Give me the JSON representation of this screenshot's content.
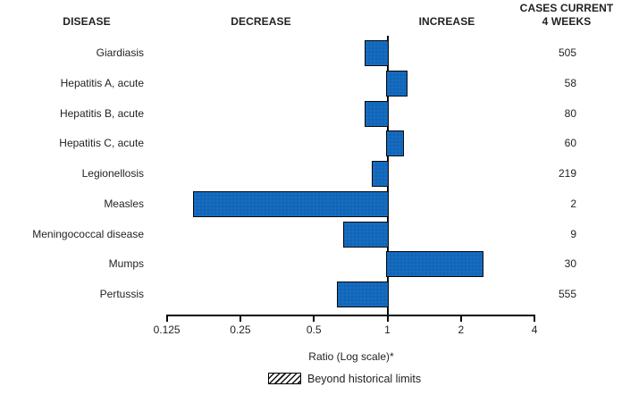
{
  "header": {
    "disease": "DISEASE",
    "decrease": "DECREASE",
    "increase": "INCREASE",
    "cases_line1": "CASES CURRENT",
    "cases_line2": "4 WEEKS"
  },
  "chart_data": {
    "type": "bar",
    "orientation": "horizontal",
    "scale": "log2",
    "xlabel": "Ratio (Log scale)*",
    "baseline": 1,
    "x_range": [
      0.125,
      4
    ],
    "x_ticks": [
      0.125,
      0.25,
      0.5,
      1,
      2,
      4
    ],
    "x_tick_labels": [
      "0.125",
      "0.25",
      "0.5",
      "1",
      "2",
      "4"
    ],
    "grid": false,
    "legend_position": "bottom",
    "categories": [
      "Giardiasis",
      "Hepatitis A, acute",
      "Hepatitis B, acute",
      "Hepatitis C, acute",
      "Legionellosis",
      "Measles",
      "Meningococcal disease",
      "Mumps",
      "Pertussis"
    ],
    "ratios": [
      0.81,
      1.21,
      0.81,
      1.17,
      0.86,
      0.16,
      0.66,
      2.48,
      0.62
    ],
    "cases_current_4_weeks": [
      505,
      58,
      80,
      60,
      219,
      2,
      9,
      30,
      555
    ],
    "beyond_historical_limits": [
      false,
      false,
      false,
      false,
      false,
      false,
      false,
      false,
      false
    ],
    "bar_color": "#1469be",
    "bar_border_color": "#0a0a0a",
    "text_color": "#231f20"
  },
  "legend": {
    "label": "Beyond historical limits",
    "swatch": "hatched-box"
  }
}
